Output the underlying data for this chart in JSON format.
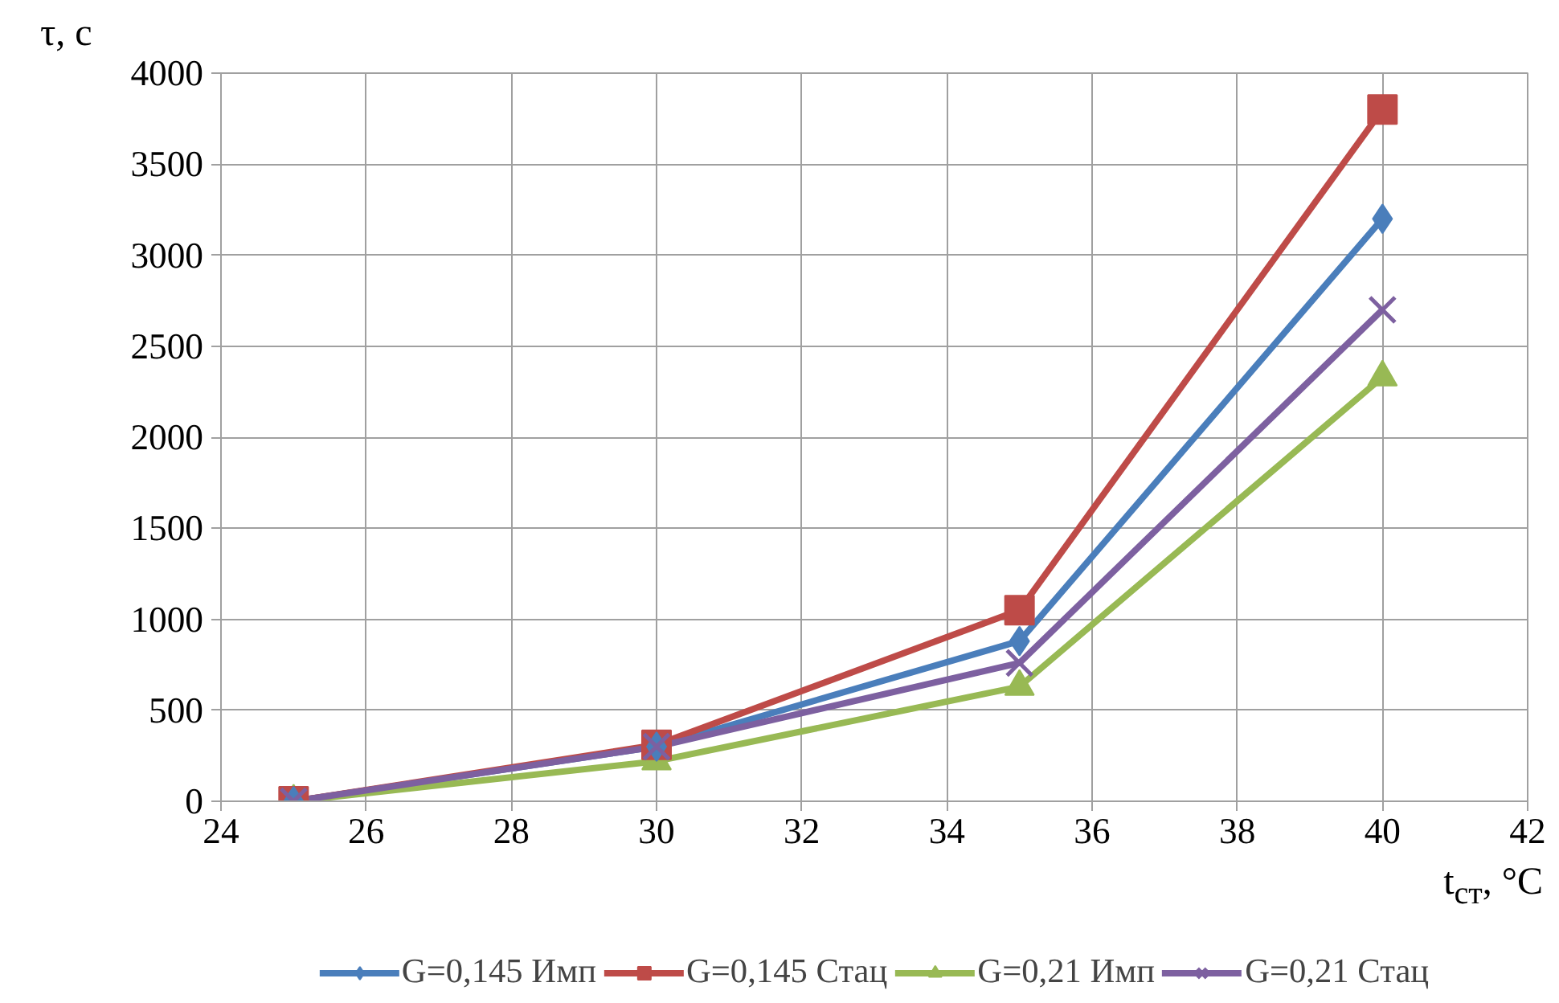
{
  "chart_data": {
    "type": "line",
    "xlabel": "t$_{ст}$, °C",
    "ylabel": "τ, с",
    "x": [
      25,
      30,
      35,
      40
    ],
    "series": [
      {
        "name": "G=0,145 Имп",
        "color": "#4a7ebb",
        "marker": "diamond",
        "values": [
          0,
          300,
          880,
          3200
        ]
      },
      {
        "name": "G=0,145 Стац",
        "color": "#be4b48",
        "marker": "square",
        "values": [
          0,
          310,
          1050,
          3800
        ]
      },
      {
        "name": "G=0,21 Имп",
        "color": "#98b954",
        "marker": "triangle",
        "values": [
          0,
          220,
          630,
          2330
        ]
      },
      {
        "name": "G=0,21 Стац",
        "color": "#7d60a0",
        "marker": "cross",
        "values": [
          0,
          300,
          760,
          2700
        ]
      }
    ],
    "xlim": [
      24,
      42
    ],
    "xticks": [
      24,
      26,
      28,
      30,
      32,
      34,
      36,
      38,
      40,
      42
    ],
    "ylim": [
      0,
      4000
    ],
    "yticks": [
      0,
      500,
      1000,
      1500,
      2000,
      2500,
      3000,
      3500,
      4000
    ],
    "grid": true,
    "legend": "bottom",
    "line_style": "solid"
  }
}
